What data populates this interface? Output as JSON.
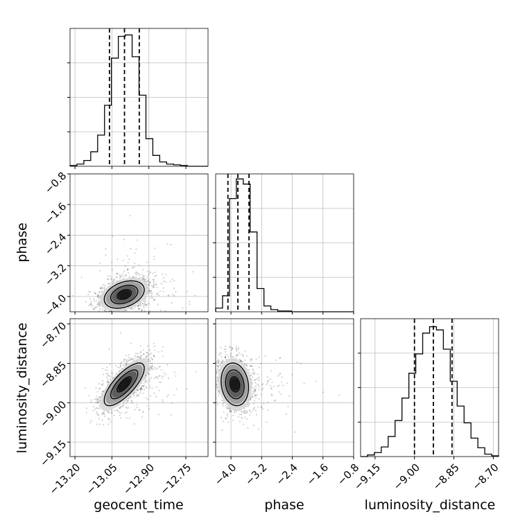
{
  "chart_data": {
    "type": "corner",
    "parameters": [
      "geocent_time",
      "phase",
      "luminosity_distance"
    ],
    "axis_labels": {
      "x": [
        "geocent_time",
        "phase",
        "luminosity_distance"
      ],
      "y": [
        "",
        "phase",
        "luminosity_distance"
      ]
    },
    "grid": true,
    "ranges": {
      "geocent_time": [
        -13.22,
        -12.66
      ],
      "phase": [
        -4.4,
        -0.8
      ],
      "luminosity_distance": [
        -9.205,
        -8.68
      ]
    },
    "ticks": {
      "geocent_time": {
        "values": [
          -13.2,
          -13.05,
          -12.9,
          -12.75
        ],
        "labels": [
          "−13.20",
          "−13.05",
          "−12.90",
          "−12.75"
        ]
      },
      "phase": {
        "values": [
          -4.0,
          -3.2,
          -2.4,
          -1.6,
          -0.8
        ],
        "labels": [
          "−4.0",
          "−3.2",
          "−2.4",
          "−1.6",
          "−0.8"
        ]
      },
      "luminosity_distance": {
        "values": [
          -9.15,
          -9.0,
          -8.85,
          -8.7
        ],
        "labels": [
          "−9.15",
          "−9.00",
          "−8.85",
          "−8.70"
        ]
      }
    },
    "histograms": [
      {
        "parameter": "geocent_time",
        "bin_edges": [
          -13.22,
          -13.192,
          -13.164,
          -13.136,
          -13.108,
          -13.08,
          -13.052,
          -13.024,
          -12.996,
          -12.968,
          -12.94,
          -12.912,
          -12.884,
          -12.856,
          -12.828,
          -12.8,
          -12.772,
          -12.744,
          -12.716,
          -12.688,
          -12.66
        ],
        "counts": [
          1,
          3,
          8,
          20,
          43,
          84,
          149,
          179,
          181,
          151,
          98,
          38,
          15,
          6,
          3,
          2,
          1,
          0,
          0,
          0
        ],
        "ymax": 190,
        "quantiles": [
          -13.06,
          -12.999,
          -12.939
        ]
      },
      {
        "parameter": "phase",
        "bin_edges": [
          -4.4,
          -4.22,
          -4.04,
          -3.86,
          -3.68,
          -3.5,
          -3.32,
          -3.14,
          -2.96,
          -2.78,
          -2.6,
          -2.42,
          -2.24,
          -2.06,
          -1.88,
          -1.7,
          -1.52,
          -1.34,
          -1.16,
          -0.98,
          -0.8
        ],
        "counts": [
          5,
          22,
          156,
          183,
          176,
          110,
          32,
          8,
          3,
          1,
          1,
          0,
          0,
          0,
          0,
          0,
          0,
          0,
          0,
          0
        ],
        "ymax": 190,
        "quantiles": [
          -4.08,
          -3.82,
          -3.53
        ]
      },
      {
        "parameter": "luminosity_distance",
        "bin_edges": [
          -9.205,
          -9.17875,
          -9.1525,
          -9.12625,
          -9.1,
          -9.07375,
          -9.0475,
          -9.02125,
          -8.995,
          -8.96875,
          -8.9425,
          -8.91625,
          -8.89,
          -8.86375,
          -8.8375,
          -8.81125,
          -8.785,
          -8.75875,
          -8.7325,
          -8.70625,
          -8.68
        ],
        "counts": [
          0,
          2,
          5,
          12,
          25,
          45,
          73,
          104,
          128,
          154,
          162,
          158,
          134,
          94,
          63,
          42,
          23,
          11,
          3,
          1
        ],
        "ymax": 172,
        "quantiles": [
          -9.0,
          -8.928,
          -8.857
        ]
      }
    ],
    "joint_2d": [
      {
        "x": "geocent_time",
        "y": "phase",
        "center": [
          -13.0,
          -3.95
        ],
        "sigma": [
          0.05,
          0.22
        ],
        "rho": 0.35,
        "contour_levels": [
          0.5,
          1.0,
          1.5,
          2.0
        ],
        "scatter_points": 1800,
        "scatter_tail_sigma": [
          0.12,
          1.0
        ]
      },
      {
        "x": "geocent_time",
        "y": "luminosity_distance",
        "center": [
          -13.0,
          -8.93
        ],
        "sigma": [
          0.05,
          0.05
        ],
        "rho": 0.75,
        "contour_levels": [
          0.5,
          1.0,
          1.5,
          2.0
        ],
        "scatter_points": 1800,
        "scatter_tail_sigma": [
          0.1,
          0.1
        ]
      },
      {
        "x": "phase",
        "y": "luminosity_distance",
        "center": [
          -3.9,
          -8.93
        ],
        "sigma": [
          0.22,
          0.05
        ],
        "rho": -0.15,
        "contour_levels": [
          0.5,
          1.0,
          1.5,
          2.0
        ],
        "scatter_points": 1800,
        "scatter_tail_sigma": [
          0.9,
          0.1
        ]
      }
    ]
  }
}
